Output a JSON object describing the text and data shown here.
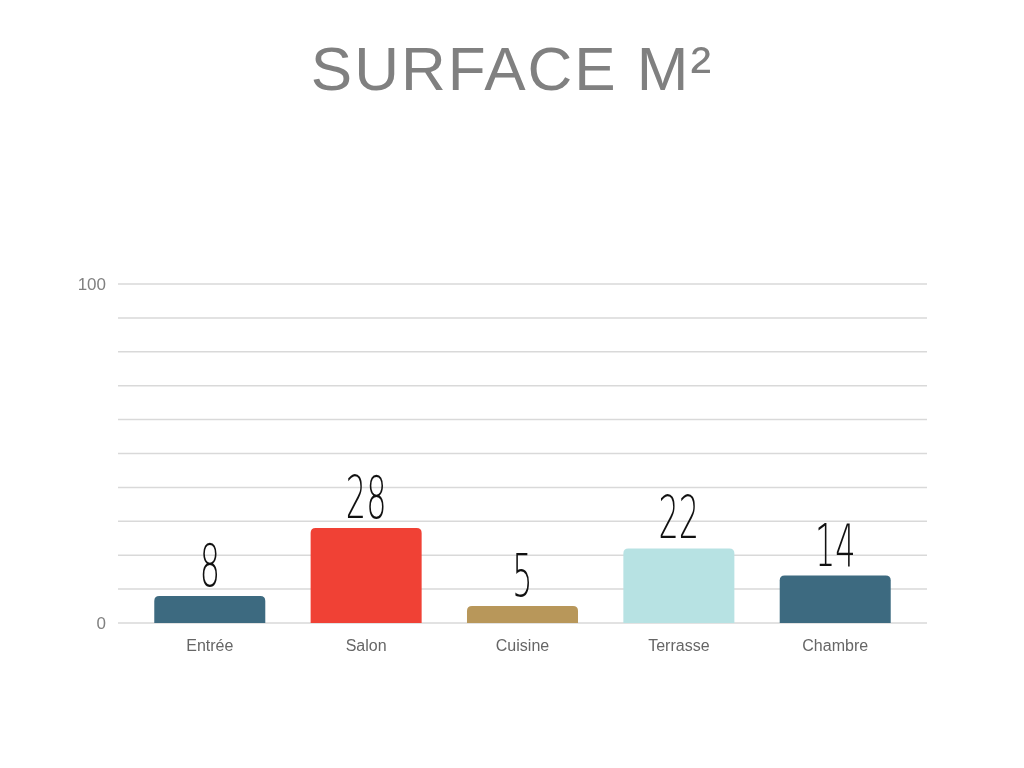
{
  "chart_data": {
    "type": "bar",
    "title": "SURFACE M²",
    "categories": [
      "Entrée",
      "Salon",
      "Cuisine",
      "Terrasse",
      "Chambre"
    ],
    "values": [
      8,
      28,
      5,
      22,
      14
    ],
    "colors": [
      "#3d6a80",
      "#f04135",
      "#b8975a",
      "#b7e2e3",
      "#3d6a80"
    ],
    "ylim": [
      0,
      100
    ],
    "yticks": [
      0,
      {
        "value": 10,
        "label": null
      },
      {
        "value": 20,
        "label": null
      },
      {
        "value": 30,
        "label": null
      },
      {
        "value": 40,
        "label": null
      },
      {
        "value": 50,
        "label": null
      },
      {
        "value": 60,
        "label": null
      },
      {
        "value": 70,
        "label": null
      },
      {
        "value": 80,
        "label": null
      },
      {
        "value": 90,
        "label": null
      },
      100
    ],
    "grid": "y",
    "data_labels": true
  }
}
